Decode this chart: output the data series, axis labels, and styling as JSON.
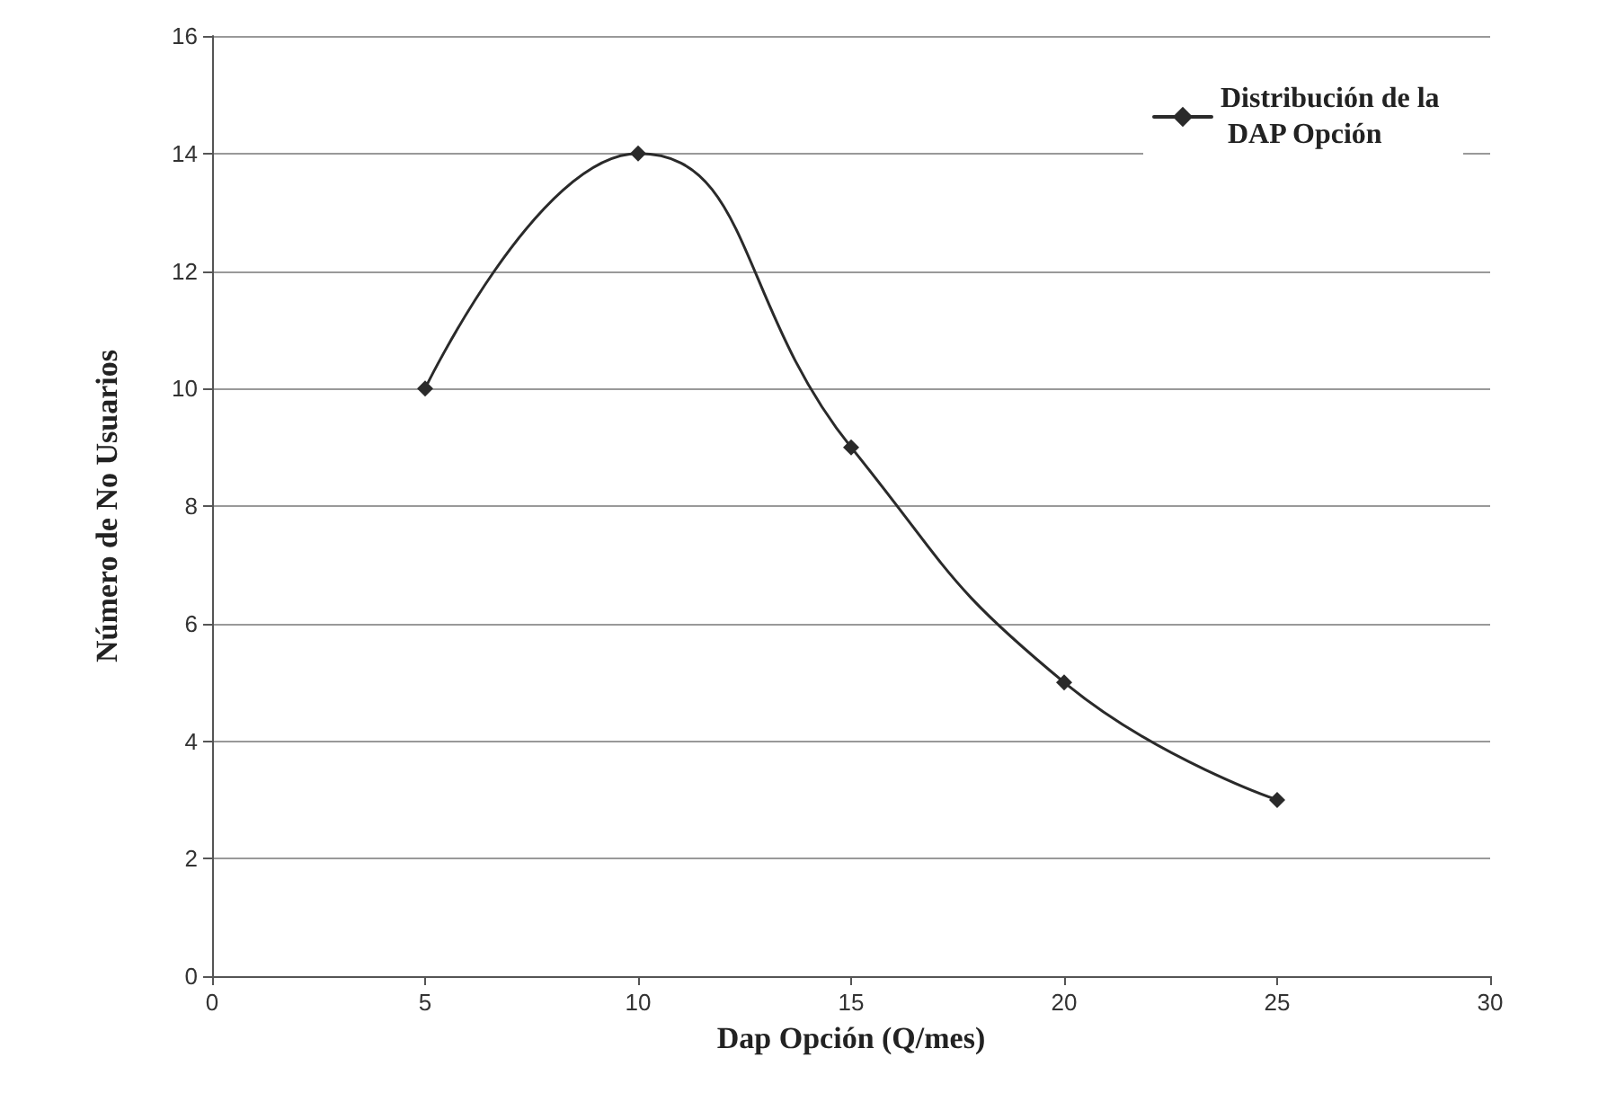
{
  "chart_data": {
    "type": "line",
    "xlabel": "Dap Opción (Q/mes)",
    "ylabel": "Número de No Usuarios",
    "x": [
      5,
      10,
      15,
      20,
      25
    ],
    "series": [
      {
        "name": "Distribución de la DAP Opción",
        "color": "#2a2a2a",
        "values": [
          10,
          14,
          9,
          5,
          3
        ]
      }
    ],
    "xlim": [
      0,
      30
    ],
    "xticks": [
      0,
      5,
      10,
      15,
      20,
      25,
      30
    ],
    "ylim": [
      0,
      16
    ],
    "yticks": [
      0,
      2,
      4,
      6,
      8,
      10,
      12,
      14,
      16
    ],
    "grid": "y",
    "legend": "top right",
    "marker": "diamond",
    "line_style": "solid"
  }
}
